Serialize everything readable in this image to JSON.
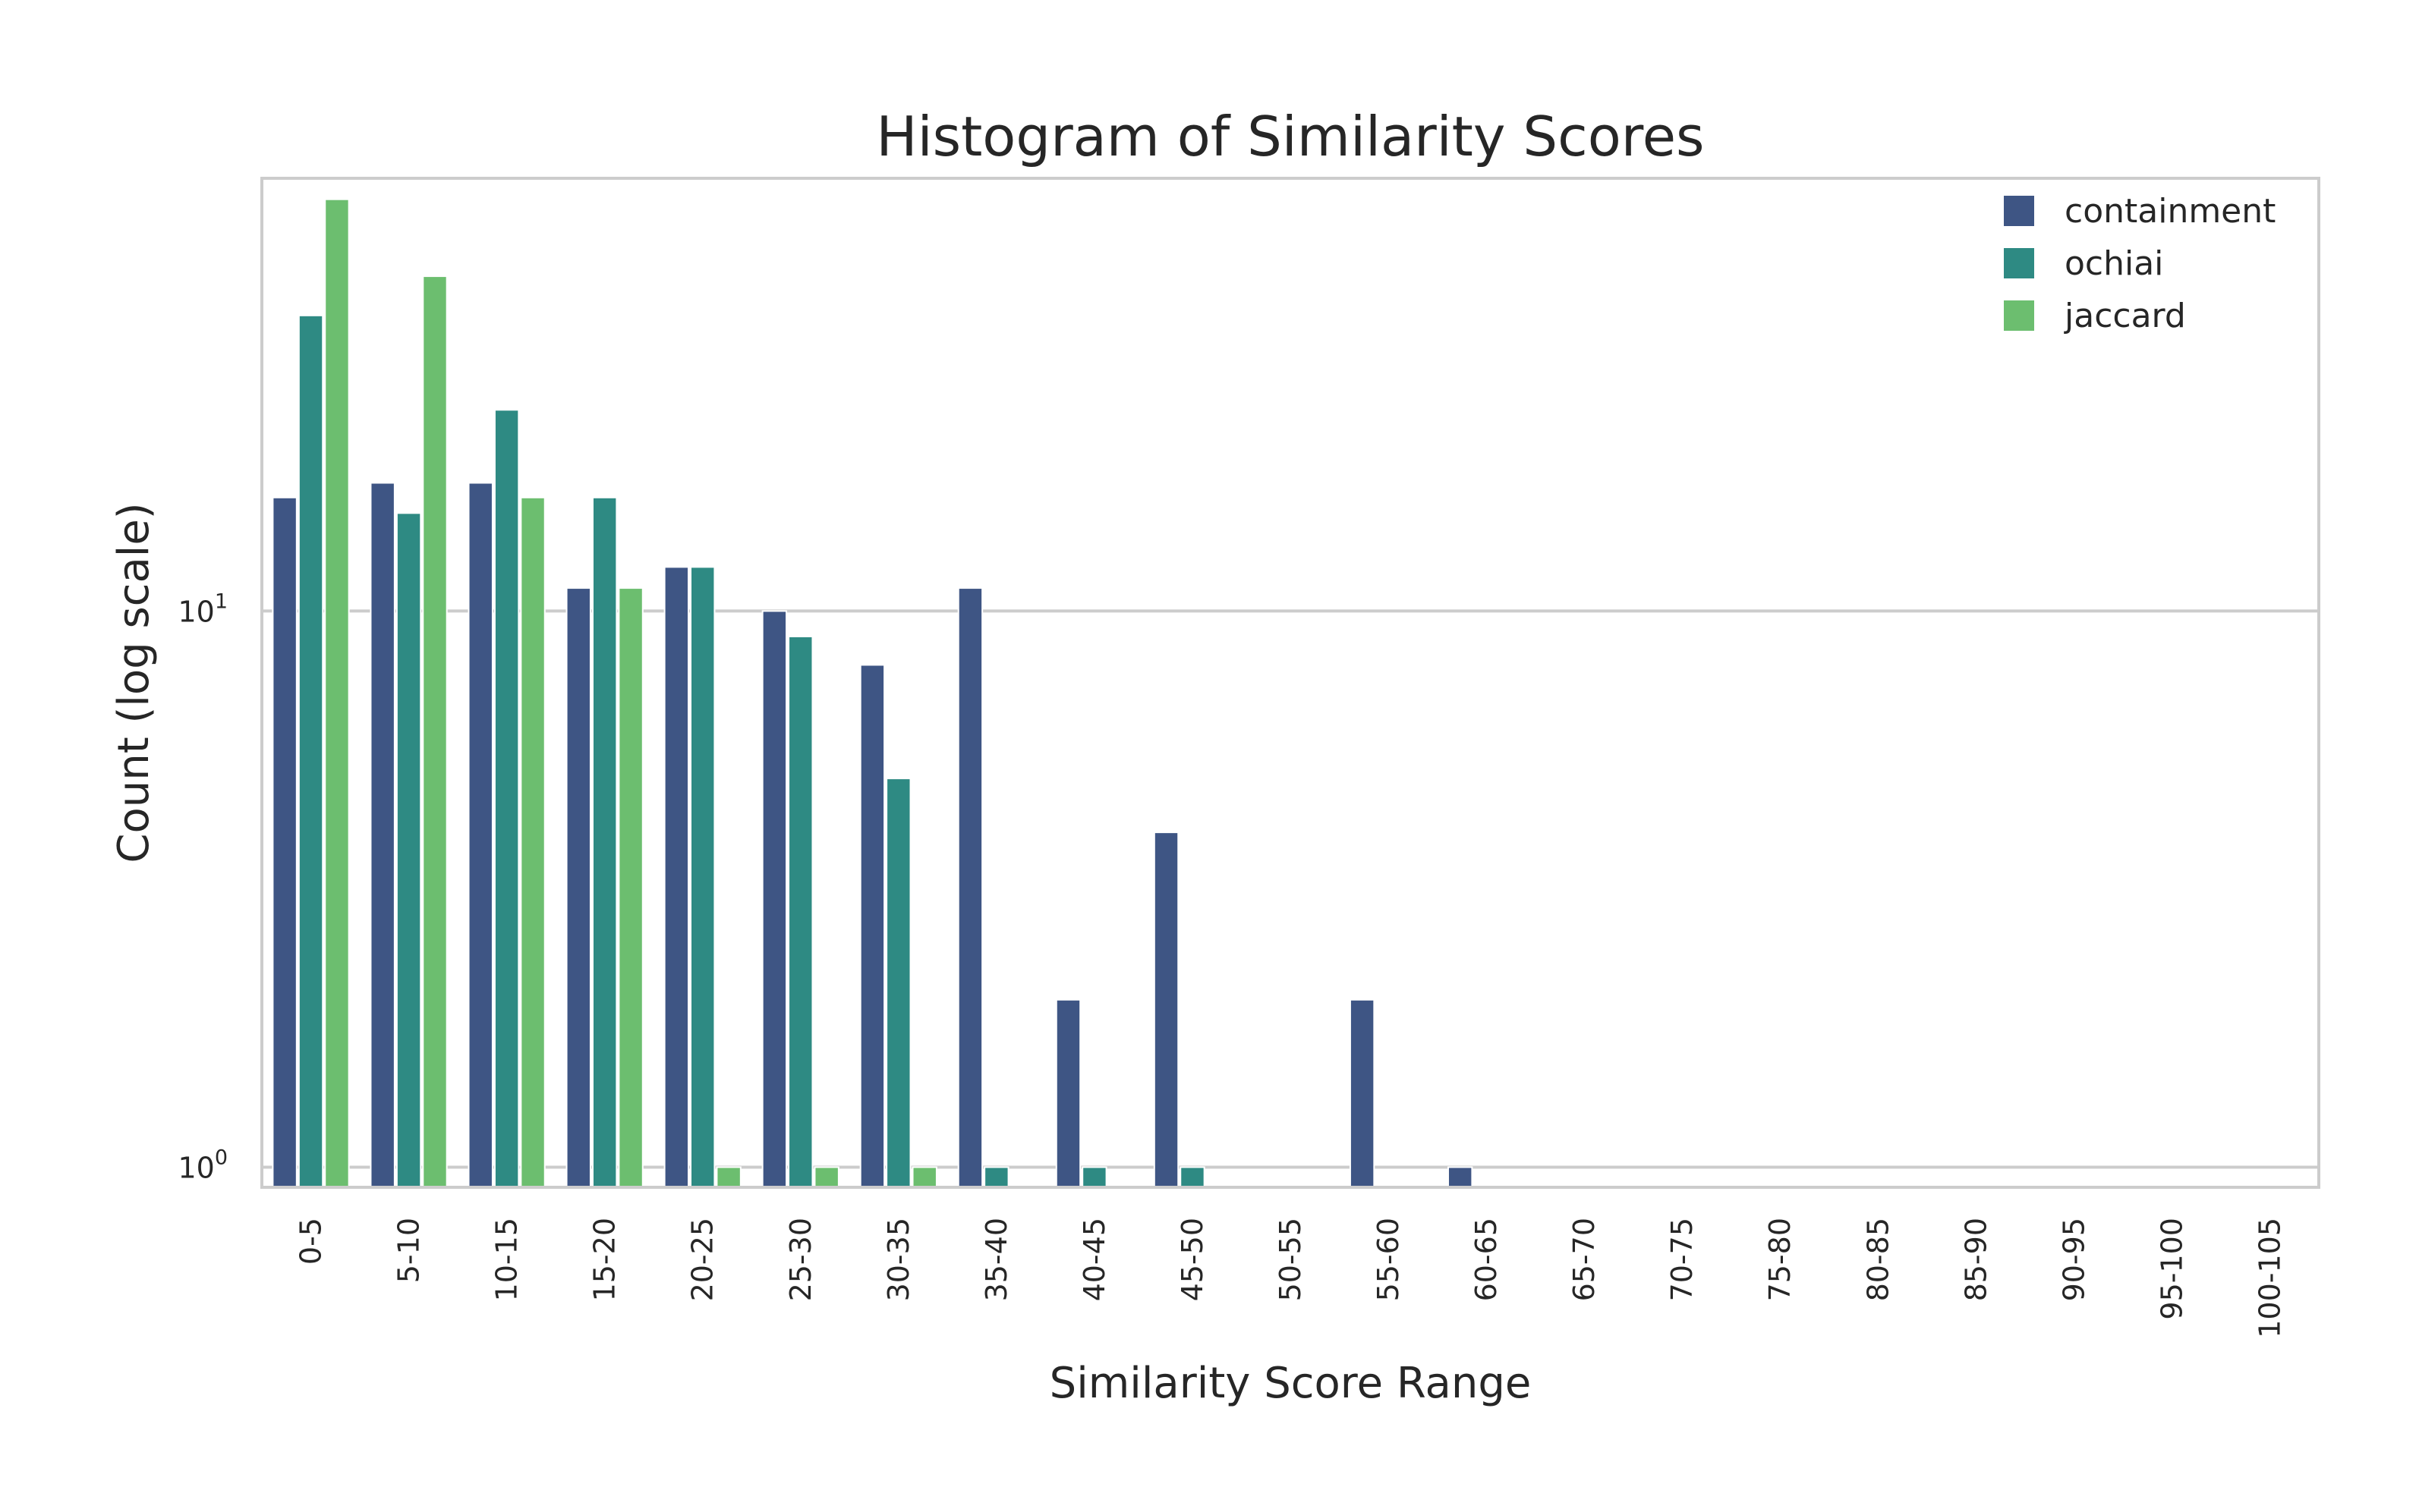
{
  "chart_data": {
    "type": "bar",
    "title": "Histogram of Similarity Scores",
    "xlabel": "Similarity Score Range",
    "ylabel": "Count (log scale)",
    "yscale": "log",
    "ylim": [
      0.92,
      60
    ],
    "y_ticks": [
      {
        "value": 1,
        "base": "10",
        "exp": "0"
      },
      {
        "value": 10,
        "base": "10",
        "exp": "1"
      }
    ],
    "grid": "horizontal",
    "legend_position": "top-right",
    "categories": [
      "0-5",
      "5-10",
      "10-15",
      "15-20",
      "20-25",
      "25-30",
      "30-35",
      "35-40",
      "40-45",
      "45-50",
      "50-55",
      "55-60",
      "60-65",
      "65-70",
      "70-75",
      "75-80",
      "80-85",
      "85-90",
      "90-95",
      "95-100",
      "100-105"
    ],
    "series": [
      {
        "name": "containment",
        "color": "#3e5584",
        "values": [
          16,
          17,
          17,
          11,
          12,
          10,
          8,
          11,
          2,
          4,
          0,
          2,
          1,
          0,
          0,
          0,
          0,
          0,
          0,
          0,
          0
        ]
      },
      {
        "name": "ochiai",
        "color": "#2e8a83",
        "values": [
          34,
          15,
          23,
          16,
          12,
          9,
          5,
          1,
          1,
          1,
          0,
          0,
          0,
          0,
          0,
          0,
          0,
          0,
          0,
          0,
          0
        ]
      },
      {
        "name": "jaccard",
        "color": "#6cbe6f",
        "values": [
          55,
          40,
          16,
          11,
          1,
          1,
          1,
          0,
          0,
          0,
          0,
          0,
          0,
          0,
          0,
          0,
          0,
          0,
          0,
          0,
          0
        ]
      }
    ]
  }
}
